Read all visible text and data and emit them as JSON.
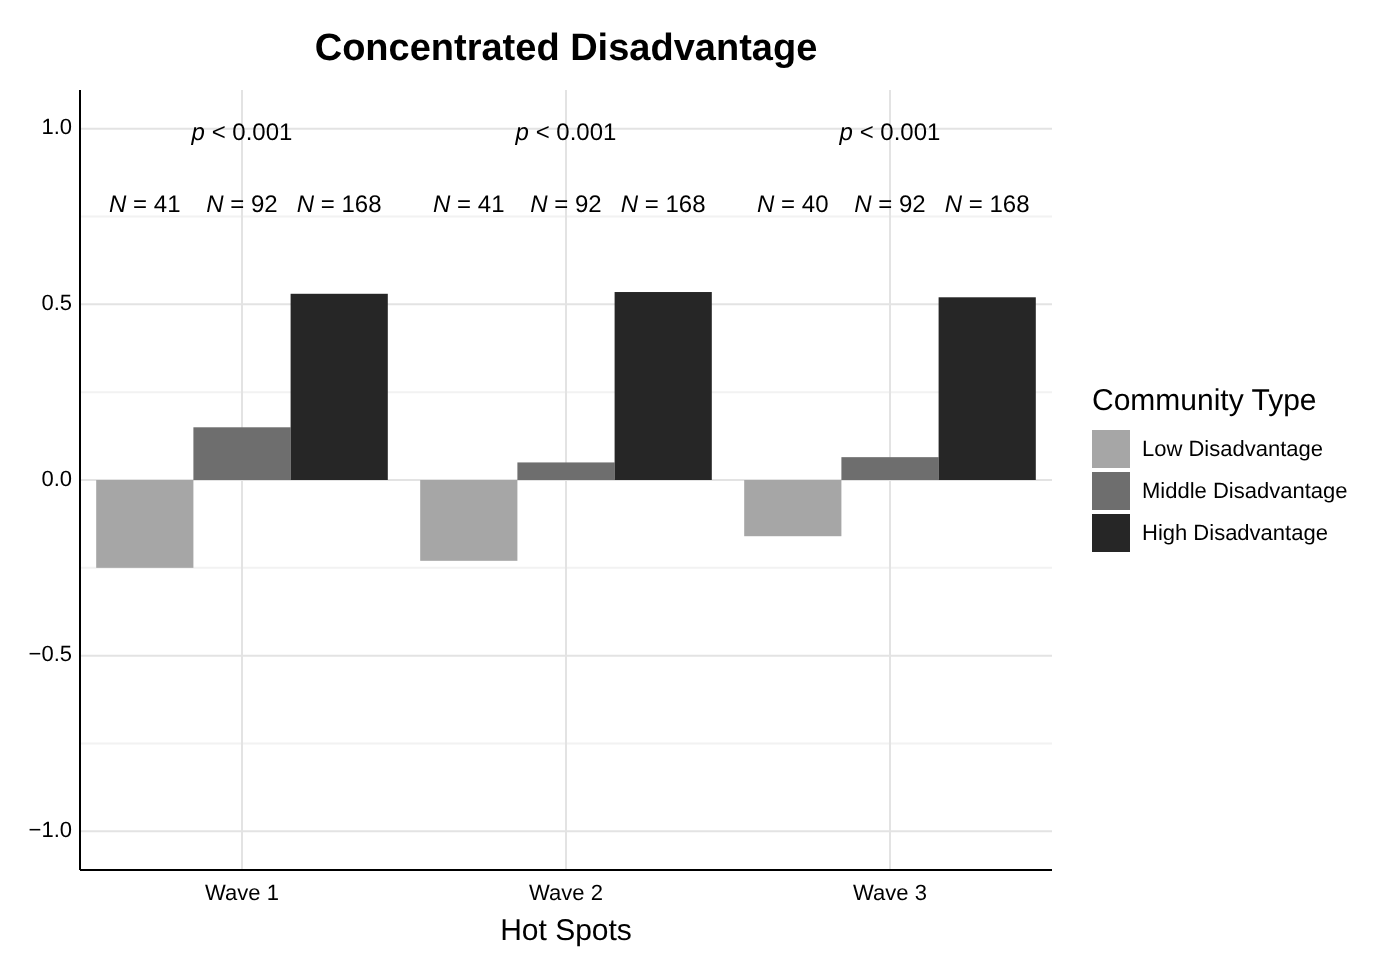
{
  "chart_data": {
    "type": "bar",
    "title": "Concentrated Disadvantage",
    "xlabel": "Hot Spots",
    "legend_title": "Community Type",
    "categories": [
      "Wave 1",
      "Wave 2",
      "Wave 3"
    ],
    "series": [
      {
        "name": "Low Disadvantage",
        "color": "#a6a6a6",
        "values": [
          -0.25,
          -0.23,
          -0.16
        ]
      },
      {
        "name": "Middle Disadvantage",
        "color": "#6e6e6e",
        "values": [
          0.15,
          0.05,
          0.065
        ]
      },
      {
        "name": "High Disadvantage",
        "color": "#262626",
        "values": [
          0.53,
          0.535,
          0.52
        ]
      }
    ],
    "ylim": [
      -1.11,
      1.11
    ],
    "yticks": [
      {
        "value": -1,
        "label": "−1.0"
      },
      {
        "value": -0.75,
        "label": null
      },
      {
        "value": -0.5,
        "label": "−0.5"
      },
      {
        "value": -0.25,
        "label": null
      },
      {
        "value": 0,
        "label": "0.0"
      },
      {
        "value": 0.25,
        "label": null
      },
      {
        "value": 0.5,
        "label": "0.5"
      },
      {
        "value": 0.75,
        "label": null
      },
      {
        "value": 1,
        "label": "1.0"
      }
    ],
    "grid": true,
    "legend": "right",
    "annotations": [
      "p < 0.001",
      "p < 0.001",
      "p < 0.001",
      "N = 41",
      "N = 92",
      "N = 168",
      "N = 41",
      "N = 92",
      "N = 168",
      "N = 40",
      "N = 92",
      "N = 168"
    ]
  }
}
